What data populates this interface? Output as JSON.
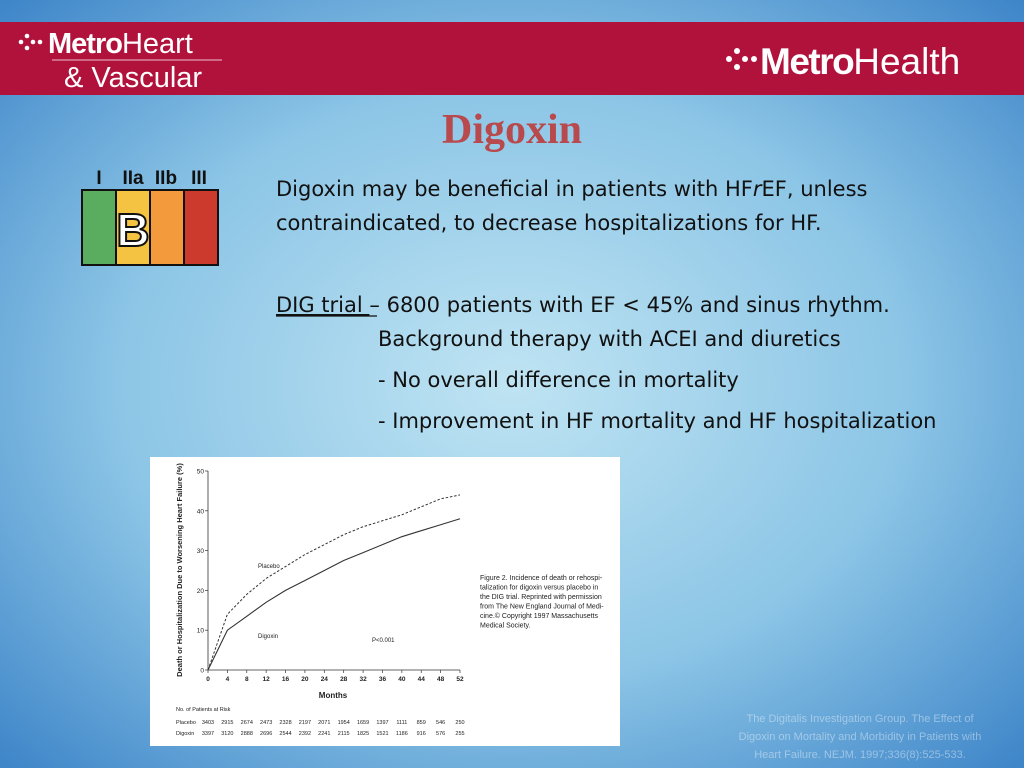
{
  "header": {
    "left_logo": {
      "bold": "Metro",
      "light": "Heart",
      "line2": "& Vascular"
    },
    "right_logo": {
      "bold": "Metro",
      "light": "Health"
    }
  },
  "title": "Digoxin",
  "recommendation": {
    "classes": [
      "I",
      "IIa",
      "IIb",
      "III"
    ],
    "level": "B"
  },
  "body": {
    "statement": [
      "Digoxin may be beneficial in patients with HF",
      "r",
      "EF, unless",
      "contraindicated, to decrease hospitalizations for HF."
    ],
    "trial_label": "DIG trial ",
    "trial_text": "– 6800 patients with EF < 45% and sinus rhythm.",
    "trial_lines": [
      "Background therapy with ACEI and diuretics",
      "- No overall difference in mortality",
      "- Improvement in HF mortality and HF hospitalization"
    ]
  },
  "figure": {
    "type": "line",
    "y_label": "Death or Hospitalization Due to Worsening Heart Failure (%)",
    "x_label": "Months",
    "x": [
      0,
      4,
      8,
      12,
      16,
      20,
      24,
      28,
      32,
      36,
      40,
      44,
      48,
      52
    ],
    "xlim": [
      0,
      52
    ],
    "ylim": [
      0,
      50
    ],
    "xticks": [
      0,
      4,
      8,
      12,
      16,
      20,
      24,
      28,
      32,
      36,
      40,
      44,
      48,
      52
    ],
    "yticks": [
      0,
      10,
      20,
      30,
      40,
      50
    ],
    "series": [
      {
        "name": "Placebo",
        "color": "#333333",
        "dashed": true,
        "values": [
          0,
          14,
          19,
          23,
          26,
          29,
          31.5,
          34,
          36,
          37.5,
          39,
          41,
          43,
          44
        ]
      },
      {
        "name": "Digoxin",
        "color": "#333333",
        "dashed": false,
        "values": [
          0,
          10,
          13.5,
          17,
          20,
          22.5,
          25,
          27.5,
          29.5,
          31.5,
          33.5,
          35,
          36.5,
          38
        ]
      }
    ],
    "annotation": "P<0.001",
    "at_risk": {
      "title": "No. of Patients at Risk",
      "rows": [
        {
          "name": "Placebo",
          "counts": [
            3403,
            2915,
            2674,
            2473,
            2328,
            2197,
            2071,
            1954,
            1659,
            1397,
            1111,
            859,
            546,
            250
          ]
        },
        {
          "name": "Digoxin",
          "counts": [
            3397,
            3120,
            2888,
            2696,
            2544,
            2392,
            2241,
            2115,
            1825,
            1521,
            1186,
            916,
            576,
            255
          ]
        }
      ]
    },
    "caption": [
      "Figure 2. Incidence of death or rehospi-",
      "talization for digoxin versus placebo in",
      "the DIG trial. Reprinted with permission",
      "from The New England Journal of Medi-",
      "cine.© Copyright 1997 Massachusetts",
      "Medical Society."
    ]
  },
  "citation": [
    "The Digitalis Investigation Group. The Effect of",
    "Digoxin on Mortality and Morbidity in Patients with",
    "Heart Failure. NEJM. 1997;336(8):525-533."
  ]
}
